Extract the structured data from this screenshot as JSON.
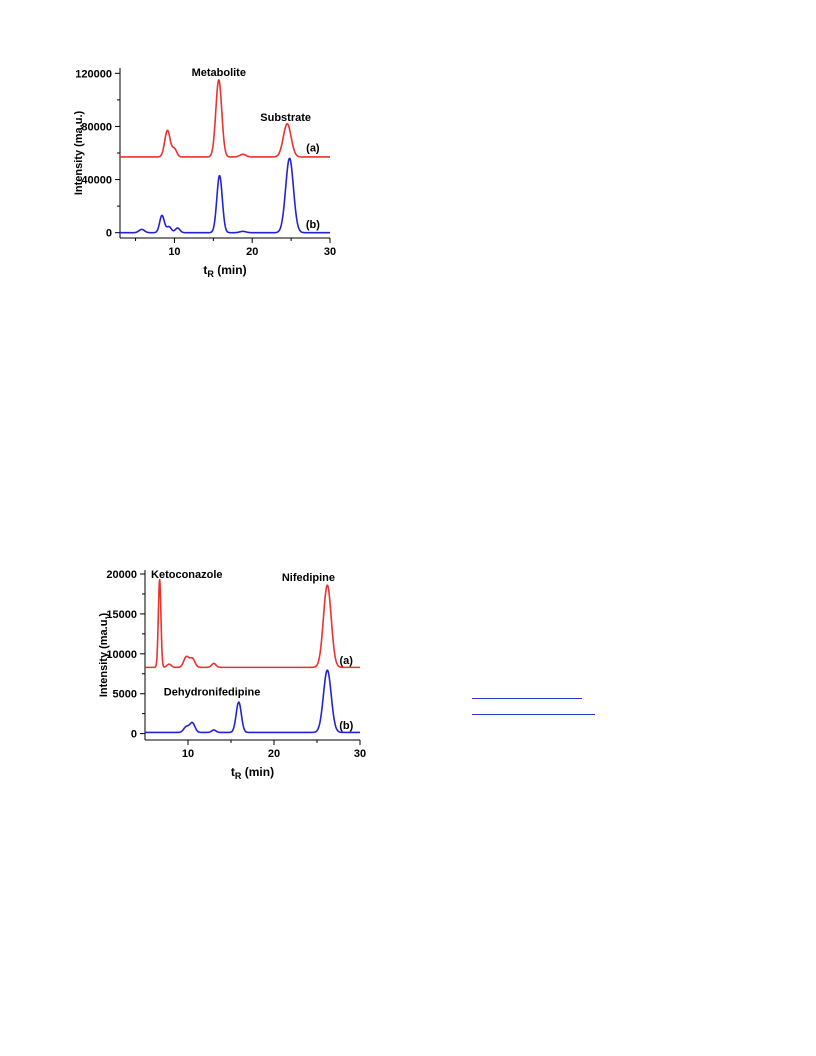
{
  "chart_data": [
    {
      "type": "line",
      "xlim": [
        3,
        30
      ],
      "ylim": [
        -4000,
        124000
      ],
      "x_ticks": [
        10,
        20,
        30
      ],
      "y_ticks": [
        0,
        40000,
        80000,
        120000
      ],
      "xlabel_main": "t",
      "xlabel_sub": "R",
      "xlabel_unit": " (min)",
      "ylabel": "Intensity (ma.u.)",
      "grid": false,
      "series": [
        {
          "name": "(a)",
          "color": "#e8332f",
          "baseline": 57000,
          "peaks": [
            [
              9.1,
              20000,
              0.35
            ],
            [
              10.0,
              6000,
              0.3
            ],
            [
              15.7,
              58000,
              0.38
            ],
            [
              18.8,
              2000,
              0.4
            ],
            [
              24.5,
              25000,
              0.5
            ]
          ]
        },
        {
          "name": "(b)",
          "color": "#2323d6",
          "baseline": 0,
          "peaks": [
            [
              5.8,
              2500,
              0.35
            ],
            [
              8.4,
              13000,
              0.3
            ],
            [
              9.3,
              4500,
              0.3
            ],
            [
              10.4,
              3500,
              0.3
            ],
            [
              15.8,
              43000,
              0.35
            ],
            [
              18.8,
              1000,
              0.4
            ],
            [
              24.8,
              56000,
              0.5
            ]
          ]
        }
      ],
      "annotations": [
        {
          "text": "Metabolite",
          "x": 15.7,
          "y": 118000
        },
        {
          "text": "Substrate",
          "x": 24.3,
          "y": 84000
        },
        {
          "text": "(a)",
          "x": 27.8,
          "y": 61000
        },
        {
          "text": "(b)",
          "x": 27.8,
          "y": 3500
        }
      ]
    },
    {
      "type": "line",
      "xlim": [
        5,
        30
      ],
      "ylim": [
        -800,
        20500
      ],
      "x_ticks": [
        10,
        20,
        30
      ],
      "y_ticks": [
        0,
        5000,
        10000,
        15000,
        20000
      ],
      "xlabel_main": "t",
      "xlabel_sub": "R",
      "xlabel_unit": " (min)",
      "ylabel": "Intensity (ma.u.)",
      "grid": false,
      "series": [
        {
          "name": "(a)",
          "color": "#e8332f",
          "baseline": 8300,
          "peaks": [
            [
              6.7,
              11000,
              0.15
            ],
            [
              7.8,
              400,
              0.25
            ],
            [
              9.8,
              1300,
              0.3
            ],
            [
              10.5,
              1100,
              0.3
            ],
            [
              13.0,
              500,
              0.25
            ],
            [
              26.2,
              10300,
              0.45
            ]
          ]
        },
        {
          "name": "(b)",
          "color": "#2323d6",
          "baseline": 150,
          "peaks": [
            [
              9.8,
              700,
              0.3
            ],
            [
              10.5,
              1200,
              0.3
            ],
            [
              13.0,
              300,
              0.25
            ],
            [
              15.9,
              3800,
              0.3
            ],
            [
              26.2,
              7800,
              0.45
            ]
          ]
        }
      ],
      "annotations": [
        {
          "text": "Ketoconazole",
          "x": 5.7,
          "y": 19500
        },
        {
          "text": "Nifedipine",
          "x": 24.0,
          "y": 19100
        },
        {
          "text": "(a)",
          "x": 28.4,
          "y": 8700
        },
        {
          "text": "Dehydronifedipine",
          "x": 12.8,
          "y": 4800
        },
        {
          "text": "(b)",
          "x": 28.4,
          "y": 600
        }
      ]
    }
  ]
}
